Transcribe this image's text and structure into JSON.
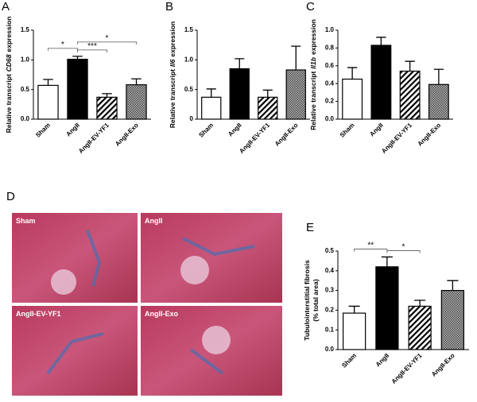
{
  "chart_data": [
    {
      "type": "bar",
      "panel": "A",
      "ylabel": {
        "text": "Relative transcript",
        "gene": "CD68",
        "suffix": "expression"
      },
      "categories": [
        "Sham",
        "AngII",
        "AngII-EV-YF1",
        "AngII-Exo"
      ],
      "values": [
        0.57,
        1.01,
        0.37,
        0.58
      ],
      "errors": [
        0.1,
        0.05,
        0.06,
        0.1
      ],
      "fills": [
        "white",
        "black",
        "hatch",
        "crosshatch"
      ],
      "ylim": [
        0,
        1.5
      ],
      "yticks": [
        {
          "value": 0,
          "label": "0.0"
        },
        0.5,
        {
          "value": 1,
          "label": "1.0"
        },
        1.5
      ],
      "significance": [
        {
          "from": 0,
          "to": 1,
          "label": "*"
        },
        {
          "from": 1,
          "to": 2,
          "label": "***"
        },
        {
          "from": 1,
          "to": 3,
          "label": "*"
        }
      ]
    },
    {
      "type": "bar",
      "panel": "B",
      "ylabel": {
        "text": "Relative transcript",
        "gene": "Il6",
        "suffix": "expression"
      },
      "categories": [
        "Sham",
        "AngII",
        "AngII-EV-YF1",
        "AngII-Exo"
      ],
      "values": [
        0.37,
        0.85,
        0.37,
        0.83
      ],
      "errors": [
        0.14,
        0.17,
        0.12,
        0.4
      ],
      "fills": [
        "white",
        "black",
        "hatch",
        "crosshatch"
      ],
      "ylim": [
        0,
        1.5
      ],
      "yticks": [
        0,
        0.5,
        {
          "value": 1,
          "label": "1.0"
        },
        1.5
      ]
    },
    {
      "type": "bar",
      "panel": "C",
      "ylabel": {
        "text": "Relative transcript",
        "gene": "Il1b",
        "suffix": "expression"
      },
      "categories": [
        "Sham",
        "AngII",
        "AngII-EV-YF1",
        "AngII-Exo"
      ],
      "values": [
        0.45,
        0.83,
        0.54,
        0.39
      ],
      "errors": [
        0.13,
        0.09,
        0.11,
        0.17
      ],
      "fills": [
        "white",
        "black",
        "hatch",
        "crosshatch"
      ],
      "ylim": [
        0,
        1
      ],
      "yticks": [
        {
          "value": 0,
          "label": "0.0"
        },
        0.2,
        0.4,
        0.6,
        0.8,
        {
          "value": 1,
          "label": "1.0"
        }
      ]
    },
    {
      "type": "bar",
      "panel": "E",
      "ylabel": {
        "text": "Tubulointerstitial fibrosis",
        "suffix": "(% total area)"
      },
      "categories": [
        "Sham",
        "AngII",
        "AngII-EV-YF1",
        "AngII-Exo"
      ],
      "values": [
        0.185,
        0.42,
        0.22,
        0.3
      ],
      "errors": [
        0.035,
        0.05,
        0.03,
        0.05
      ],
      "fills": [
        "white",
        "black",
        "hatch",
        "crosshatch"
      ],
      "ylim": [
        0,
        0.5
      ],
      "yticks": [
        {
          "value": 0,
          "label": "0.0"
        },
        0.1,
        0.2,
        0.3,
        0.4,
        0.5
      ],
      "significance": [
        {
          "from": 0,
          "to": 1,
          "label": "**"
        },
        {
          "from": 1,
          "to": 2,
          "label": "*"
        }
      ]
    }
  ],
  "images": {
    "panel": "D",
    "labels": [
      "Sham",
      "AngII",
      "AngII-EV-YF1",
      "AngII-Exo"
    ]
  }
}
